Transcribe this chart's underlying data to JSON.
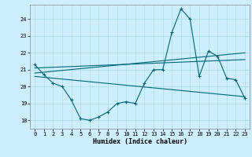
{
  "title": "",
  "xlabel": "Humidex (Indice chaleur)",
  "ylabel": "",
  "bg_color": "#cceeff",
  "grid_color": "#aadddd",
  "line_color": "#006677",
  "xlim": [
    -0.5,
    23.5
  ],
  "ylim": [
    17.5,
    24.85
  ],
  "yticks": [
    18,
    19,
    20,
    21,
    22,
    23,
    24
  ],
  "xticks": [
    0,
    1,
    2,
    3,
    4,
    5,
    6,
    7,
    8,
    9,
    10,
    11,
    12,
    13,
    14,
    15,
    16,
    17,
    18,
    19,
    20,
    21,
    22,
    23
  ],
  "series": [
    {
      "x": [
        0,
        1,
        2,
        3,
        4,
        5,
        6,
        7,
        8,
        9,
        10,
        11,
        12,
        13,
        14,
        15,
        16,
        17,
        18,
        19,
        20,
        21,
        22,
        23
      ],
      "y": [
        21.3,
        20.7,
        20.2,
        20.0,
        19.2,
        18.1,
        18.0,
        18.2,
        18.5,
        19.0,
        19.1,
        19.0,
        20.2,
        21.0,
        21.0,
        23.2,
        24.6,
        24.0,
        20.6,
        22.1,
        21.8,
        20.5,
        20.4,
        19.3
      ],
      "marker": true
    },
    {
      "x": [
        0,
        23
      ],
      "y": [
        21.1,
        21.6
      ],
      "marker": false
    },
    {
      "x": [
        0,
        23
      ],
      "y": [
        20.8,
        22.0
      ],
      "marker": false
    },
    {
      "x": [
        0,
        23
      ],
      "y": [
        20.6,
        19.4
      ],
      "marker": false
    }
  ]
}
